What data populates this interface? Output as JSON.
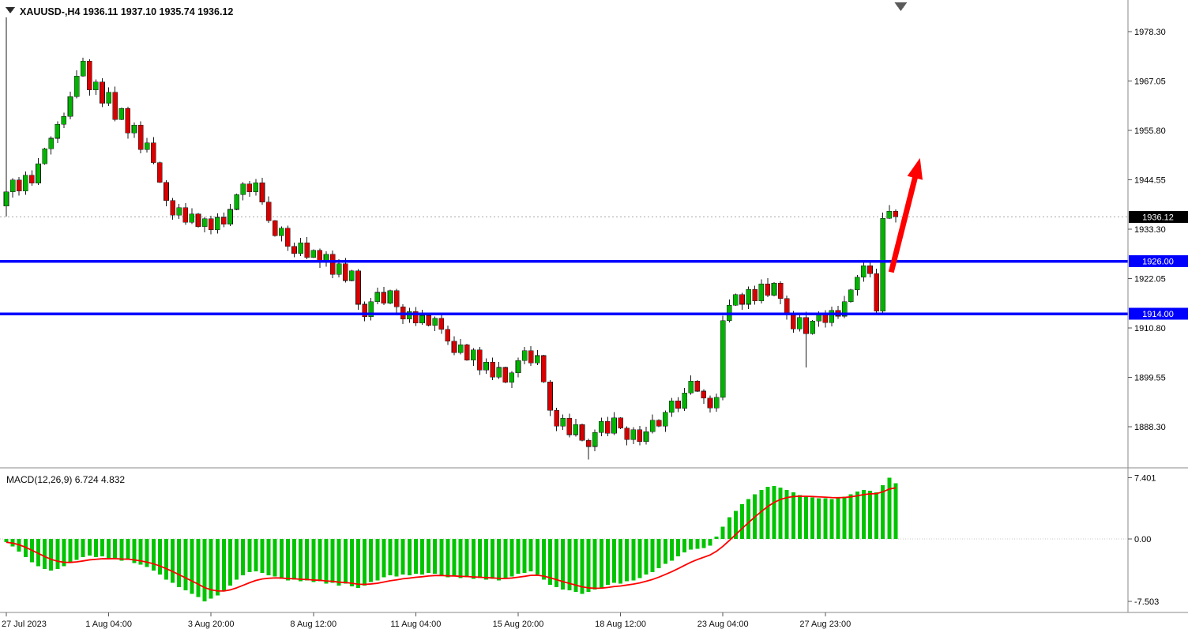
{
  "window": {
    "title": "XAUUSD-,H4  1936.11 1937.10 1935.74 1936.12"
  },
  "chart_data": {
    "type": "candlestick",
    "symbol": "XAUUSD-",
    "timeframe": "H4",
    "current_bar": {
      "open": 1936.11,
      "high": 1937.1,
      "low": 1935.74,
      "close": 1936.12
    },
    "current_price": 1936.12,
    "current_price_label": "1936.12",
    "price_axis": {
      "ticks": [
        "1978.30",
        "1967.05",
        "1955.80",
        "1944.55",
        "1933.30",
        "1922.05",
        "1910.80",
        "1899.55",
        "1888.30"
      ]
    },
    "levels": [
      {
        "price": 1926.0,
        "label": "1926.00"
      },
      {
        "price": 1914.0,
        "label": "1914.00"
      }
    ],
    "time_axis": {
      "labels": [
        "27 Jul 2023",
        "1 Aug 04:00",
        "3 Aug 20:00",
        "8 Aug 12:00",
        "11 Aug 04:00",
        "15 Aug 20:00",
        "18 Aug 12:00",
        "23 Aug 04:00",
        "27 Aug 23:00"
      ],
      "indices": [
        0,
        16,
        32,
        48,
        64,
        80,
        96,
        112,
        128
      ]
    },
    "candles": {
      "first": [
        1938.6,
        1981.5,
        1936.2,
        1941.8
      ],
      "closes": [
        1944.5,
        1942.0,
        1945.6,
        1943.8,
        1948.2,
        1951.6,
        1954.0,
        1957.2,
        1959.0,
        1963.5,
        1968.2,
        1971.6,
        1965.0,
        1966.8,
        1962.0,
        1964.5,
        1958.3,
        1960.8,
        1955.2,
        1957.0,
        1951.4,
        1953.0,
        1948.5,
        1944.0,
        1939.8,
        1936.5,
        1938.2,
        1934.9,
        1936.8,
        1933.9,
        1935.7,
        1933.2,
        1936.0,
        1934.4,
        1937.8,
        1941.2,
        1943.6,
        1941.8,
        1943.9,
        1939.5,
        1935.2,
        1931.8,
        1933.5,
        1929.4,
        1927.8,
        1930.2,
        1926.9,
        1928.5,
        1925.8,
        1927.6,
        1923.0,
        1925.4,
        1921.6,
        1923.8,
        1916.2,
        1913.4,
        1916.8,
        1918.9,
        1916.4,
        1919.3,
        1915.6,
        1912.8,
        1914.5,
        1911.9,
        1913.6,
        1911.4,
        1913.0,
        1910.5,
        1907.8,
        1905.2,
        1907.0,
        1903.5,
        1905.8,
        1901.2,
        1903.0,
        1899.6,
        1901.8,
        1898.4,
        1900.6,
        1903.4,
        1905.6,
        1902.8,
        1904.5,
        1898.5,
        1892.0,
        1888.4,
        1890.2,
        1886.5,
        1888.8,
        1885.2,
        1883.8,
        1887.0,
        1889.5,
        1886.8,
        1890.3,
        1888.0,
        1885.4,
        1887.6,
        1884.9,
        1887.2,
        1889.8,
        1888.4,
        1891.6,
        1894.2,
        1892.5,
        1896.0,
        1898.7,
        1896.4,
        1894.8,
        1892.6,
        1895.0,
        1912.5,
        1916.0,
        1918.4,
        1916.2,
        1919.6,
        1917.0,
        1920.8,
        1918.2,
        1921.0,
        1917.5,
        1913.8,
        1910.6,
        1913.2,
        1909.5,
        1912.4,
        1914.2,
        1912.0,
        1914.8,
        1913.5,
        1916.8,
        1919.5,
        1922.4,
        1925.0,
        1923.2,
        1914.6,
        1935.8,
        1937.4,
        1936.12
      ],
      "high_overrides": {
        "12": 1972.4,
        "138": 1938.8
      },
      "low_overrides": {
        "91": 1880.8,
        "125": 1901.8
      }
    },
    "macd": {
      "label": "MACD(12,26,9) 6.724 4.832",
      "value": 6.724,
      "signal_value": 4.832,
      "signal_period": 9,
      "axis_ticks": [
        "7.401",
        "0.00",
        "-7.503"
      ],
      "values": [
        -0.4,
        -0.9,
        -1.5,
        -2.2,
        -2.8,
        -3.3,
        -3.6,
        -3.8,
        -3.6,
        -3.3,
        -2.9,
        -2.5,
        -2.2,
        -2.0,
        -2.2,
        -2.1,
        -2.4,
        -2.3,
        -2.6,
        -2.5,
        -2.9,
        -3.1,
        -3.4,
        -3.8,
        -4.3,
        -4.9,
        -5.3,
        -5.8,
        -6.2,
        -6.6,
        -7.0,
        -7.503,
        -7.2,
        -6.8,
        -6.3,
        -5.6,
        -4.9,
        -4.4,
        -4.0,
        -3.9,
        -4.1,
        -4.4,
        -4.5,
        -4.8,
        -5.0,
        -4.9,
        -5.1,
        -5.0,
        -5.2,
        -5.1,
        -5.4,
        -5.3,
        -5.6,
        -5.4,
        -5.7,
        -5.9,
        -5.6,
        -5.2,
        -5.0,
        -4.6,
        -4.4,
        -4.5,
        -4.3,
        -4.4,
        -4.2,
        -4.3,
        -4.1,
        -4.2,
        -4.4,
        -4.6,
        -4.5,
        -4.7,
        -4.6,
        -4.8,
        -4.7,
        -4.9,
        -4.8,
        -5.0,
        -4.8,
        -4.5,
        -4.2,
        -4.1,
        -3.9,
        -4.3,
        -4.9,
        -5.5,
        -5.8,
        -6.1,
        -6.2,
        -6.4,
        -6.6,
        -6.4,
        -6.1,
        -5.9,
        -5.5,
        -5.3,
        -5.4,
        -5.1,
        -5.0,
        -4.7,
        -4.3,
        -4.0,
        -3.5,
        -3.0,
        -2.6,
        -2.1,
        -1.6,
        -1.3,
        -1.2,
        -1.1,
        -0.8,
        0.3,
        1.5,
        2.6,
        3.4,
        4.2,
        4.8,
        5.4,
        5.9,
        6.3,
        6.4,
        6.2,
        5.9,
        5.6,
        5.3,
        5.1,
        5.0,
        4.9,
        4.9,
        4.8,
        4.9,
        5.1,
        5.4,
        5.7,
        5.9,
        5.8,
        5.6,
        6.5,
        7.401,
        6.724
      ]
    },
    "annotations": {
      "arrow": {
        "from_candle": 138.3,
        "from_price": 1923.5,
        "to_candle": 142.8,
        "to_price": 1949.5
      },
      "shift_marker_candle": 139.8
    },
    "colors": {
      "bull": "#00B400",
      "bear": "#D80000",
      "wick": "#1a1a1a",
      "body_border": "#1a1a1a",
      "level": "#0000FF",
      "arrow": "#FF0000",
      "hist": "#00C400",
      "signal": "#FF0000",
      "bid_line": "#A8A8A8",
      "separator": "#8a8a8a",
      "tag_current_bg": "#000000",
      "shift_marker": "#5a5a5a"
    }
  }
}
